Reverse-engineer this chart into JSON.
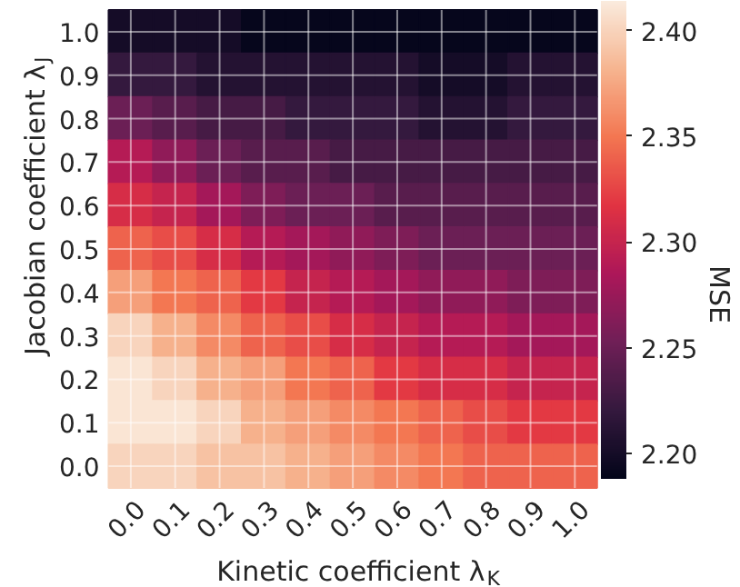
{
  "chart_data": {
    "type": "heatmap",
    "xlabel": "Kinetic coefficient λ$_{K}$",
    "ylabel": "Jacobian coefficient λ$_{J}$",
    "clabel": "MSE",
    "categories": [
      "0.0",
      "0.1",
      "0.2",
      "0.3",
      "0.4",
      "0.5",
      "0.6",
      "0.7",
      "0.8",
      "0.9",
      "1.0"
    ],
    "y_categories": [
      "1.0",
      "0.9",
      "0.8",
      "0.7",
      "0.6",
      "0.5",
      "0.4",
      "0.3",
      "0.2",
      "0.1",
      "0.0"
    ],
    "cells": [
      [
        2.2,
        2.2,
        2.2,
        2.19,
        2.19,
        2.19,
        2.19,
        2.19,
        2.19,
        2.19,
        2.19
      ],
      [
        2.22,
        2.22,
        2.21,
        2.21,
        2.21,
        2.21,
        2.21,
        2.2,
        2.2,
        2.21,
        2.21
      ],
      [
        2.25,
        2.24,
        2.23,
        2.23,
        2.22,
        2.22,
        2.22,
        2.21,
        2.21,
        2.22,
        2.22
      ],
      [
        2.29,
        2.27,
        2.25,
        2.24,
        2.24,
        2.23,
        2.23,
        2.23,
        2.23,
        2.23,
        2.23
      ],
      [
        2.31,
        2.3,
        2.28,
        2.26,
        2.25,
        2.25,
        2.24,
        2.24,
        2.24,
        2.24,
        2.24
      ],
      [
        2.34,
        2.33,
        2.31,
        2.29,
        2.28,
        2.27,
        2.26,
        2.25,
        2.25,
        2.25,
        2.25
      ],
      [
        2.37,
        2.35,
        2.34,
        2.32,
        2.3,
        2.29,
        2.28,
        2.27,
        2.27,
        2.26,
        2.26
      ],
      [
        2.4,
        2.38,
        2.36,
        2.34,
        2.33,
        2.31,
        2.3,
        2.29,
        2.29,
        2.28,
        2.28
      ],
      [
        2.41,
        2.4,
        2.38,
        2.37,
        2.35,
        2.34,
        2.32,
        2.31,
        2.31,
        2.3,
        2.3
      ],
      [
        2.41,
        2.41,
        2.4,
        2.38,
        2.37,
        2.36,
        2.35,
        2.34,
        2.33,
        2.32,
        2.32
      ],
      [
        2.4,
        2.4,
        2.39,
        2.39,
        2.38,
        2.37,
        2.36,
        2.35,
        2.34,
        2.34,
        2.34
      ]
    ],
    "clim": [
      2.188,
      2.414
    ],
    "cticks": [
      {
        "value": 2.2,
        "label": "2.20"
      },
      {
        "value": 2.25,
        "label": "2.25"
      },
      {
        "value": 2.3,
        "label": "2.30"
      },
      {
        "value": 2.35,
        "label": "2.35"
      },
      {
        "value": 2.4,
        "label": "2.40"
      }
    ],
    "grid": true
  }
}
